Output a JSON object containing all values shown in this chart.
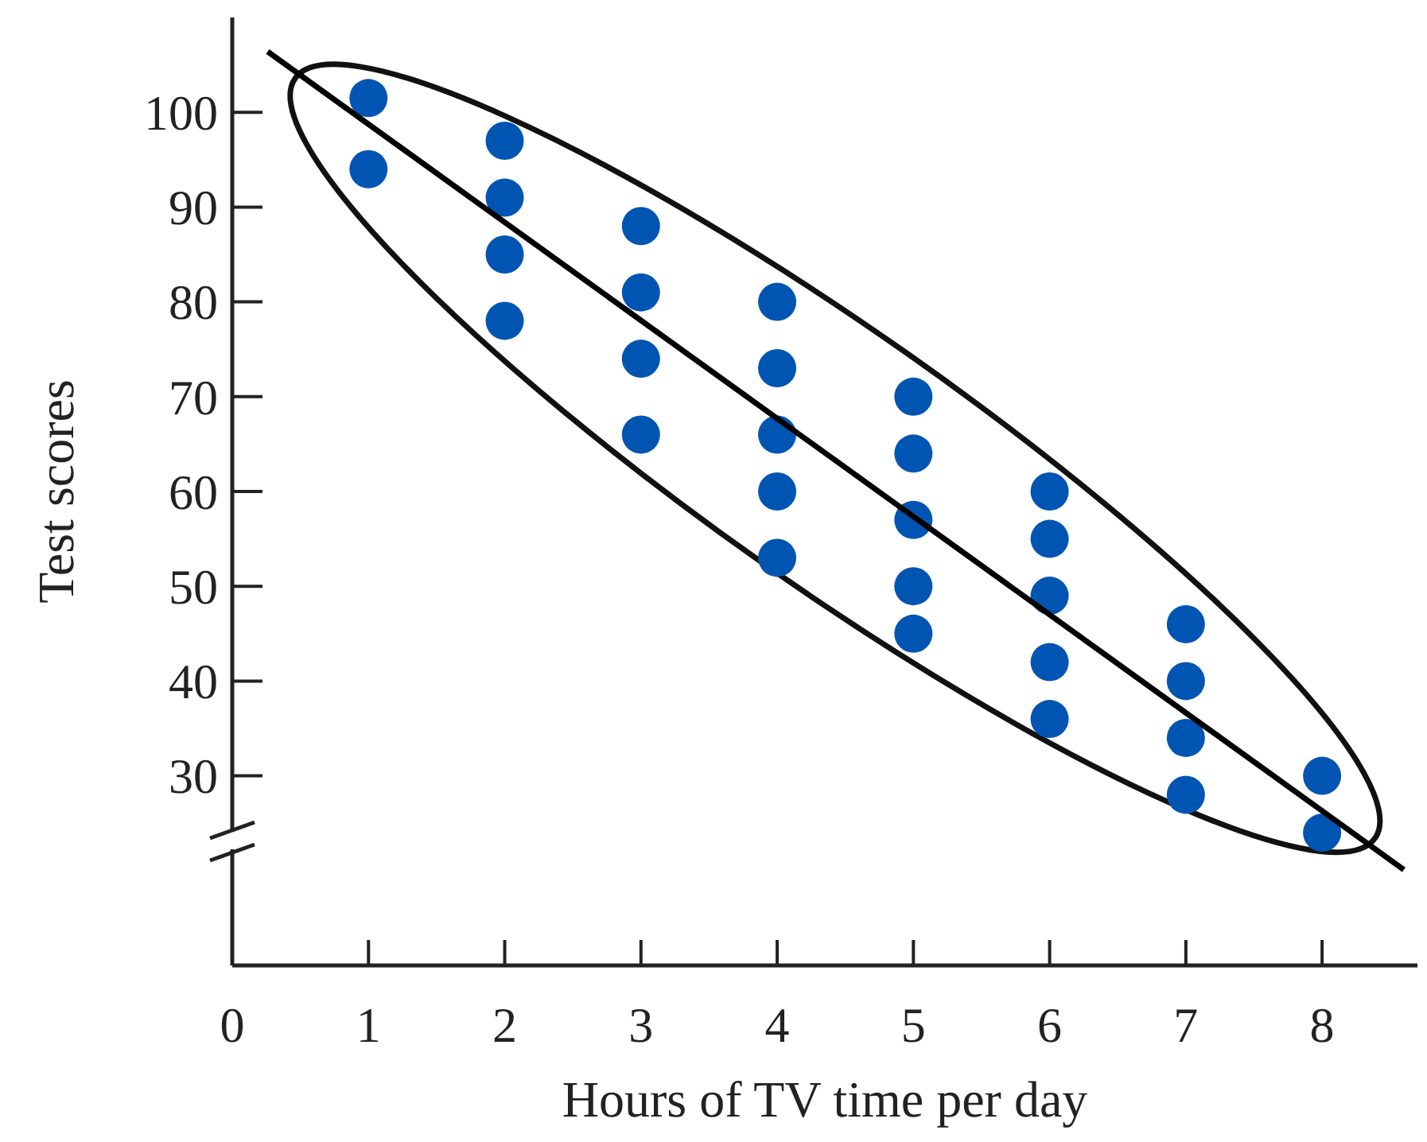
{
  "chart_data": {
    "type": "scatter",
    "xlabel": "Hours of TV time per day",
    "ylabel": "Test scores",
    "xlim": [
      0,
      8.7
    ],
    "xticks": [
      0,
      1,
      2,
      3,
      4,
      5,
      6,
      7,
      8
    ],
    "ylim": [
      10,
      110
    ],
    "yticks": [
      30,
      40,
      50,
      60,
      70,
      80,
      90,
      100
    ],
    "marker": "circle",
    "grid": false,
    "series": [
      {
        "color": "#0055b3",
        "x": [
          1,
          1,
          2,
          2,
          2,
          2,
          3,
          3,
          3,
          3,
          4,
          4,
          4,
          4,
          4,
          5,
          5,
          5,
          5,
          5,
          6,
          6,
          6,
          6,
          6,
          7,
          7,
          7,
          7,
          8,
          8
        ],
        "values": [
          101.5,
          94,
          97,
          91,
          85,
          78,
          88,
          81,
          74,
          66,
          80,
          73,
          66,
          60,
          53,
          70,
          64,
          57,
          50,
          45,
          60,
          55,
          49,
          42,
          36,
          46,
          40,
          34,
          28,
          30,
          24
        ]
      },
      {
        "type": "line",
        "color": "#000000",
        "marker": "none",
        "x": [
          0.26,
          8.6
        ],
        "values": [
          106.4,
          20.1
        ]
      }
    ]
  }
}
